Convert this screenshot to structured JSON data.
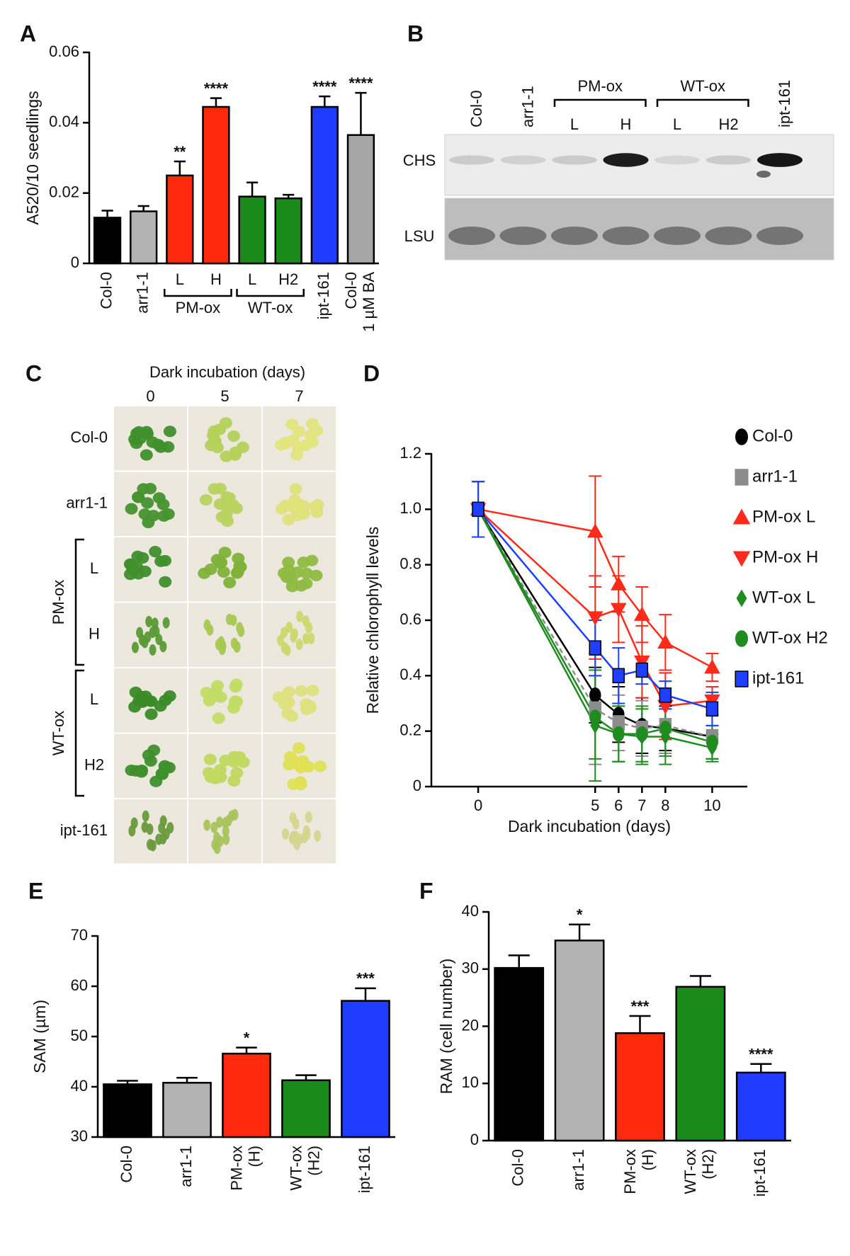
{
  "chart_data": [
    {
      "type": "bar",
      "panel_label": "A",
      "ylabel": "A520/10 seedlings",
      "categories": [
        "Col-0",
        "arr1-1",
        "L",
        "H",
        "L",
        "H2",
        "ipt-161",
        [
          "Col-0",
          "1 µM BA"
        ]
      ],
      "category_groups": [
        null,
        null,
        "PM-ox",
        "PM-ox",
        "WT-ox",
        "WT-ox",
        null,
        null
      ],
      "values": [
        0.013,
        0.0148,
        0.025,
        0.0445,
        0.019,
        0.0185,
        0.0445,
        0.0365
      ],
      "errors": [
        0.002,
        0.0015,
        0.004,
        0.0025,
        0.004,
        0.001,
        0.003,
        0.012
      ],
      "significance": [
        null,
        null,
        "**",
        "****",
        null,
        null,
        "****",
        "****"
      ],
      "colors": [
        "#000000",
        "#b3b3b3",
        "#ff2a0d",
        "#ff2a0d",
        "#1a8a1a",
        "#1a8a1a",
        "#1f3cff",
        "#a6a6a6"
      ],
      "ylim": [
        0,
        0.06
      ],
      "yticks": [
        0,
        0.02,
        0.04,
        0.06
      ]
    },
    {
      "type": "line",
      "panel_label": "D",
      "xlabel": "Dark incubation (days)",
      "ylabel": "Relative chlorophyll levels",
      "x": [
        0,
        5,
        6,
        7,
        8,
        10
      ],
      "xlim": [
        -2,
        11.5
      ],
      "xticks": [
        0,
        5,
        6,
        7,
        8,
        10
      ],
      "ylim": [
        0,
        1.2
      ],
      "yticks": [
        0,
        0.2,
        0.4,
        0.6,
        0.8,
        {
          "value": 1,
          "label": "1.0"
        },
        1.2
      ],
      "legend": "outside-right",
      "series": [
        {
          "name": "Col-0",
          "color": "#000000",
          "marker": "circle",
          "linestyle": "solid",
          "values": [
            1.0,
            0.33,
            0.26,
            0.22,
            0.21,
            0.18
          ],
          "errors": [
            0.1,
            0.1,
            0.1,
            0.1,
            0.08,
            0.08
          ]
        },
        {
          "name": "arr1-1",
          "color": "#8c8c8c",
          "marker": "square",
          "linestyle": "dashed",
          "values": [
            1.0,
            0.28,
            0.23,
            0.21,
            0.22,
            0.18
          ],
          "errors": [
            0.1,
            0.2,
            0.1,
            0.1,
            0.1,
            0.08
          ]
        },
        {
          "name": "PM-ox L",
          "color": "#ff2a1a",
          "marker": "triangle-up",
          "linestyle": "solid",
          "values": [
            1.0,
            0.92,
            0.73,
            0.62,
            0.52,
            0.43
          ],
          "errors": [
            0.1,
            0.2,
            0.1,
            0.1,
            0.1,
            0.05
          ]
        },
        {
          "name": "PM-ox H",
          "color": "#ff2a1a",
          "marker": "triangle-down",
          "linestyle": "solid",
          "values": [
            1.0,
            0.61,
            0.64,
            0.45,
            0.29,
            0.31
          ],
          "errors": [
            0.1,
            0.15,
            0.12,
            0.13,
            0.12,
            0.05
          ]
        },
        {
          "name": "WT-ox L",
          "color": "#1e8c1e",
          "marker": "diamond",
          "linestyle": "solid",
          "values": [
            1.0,
            0.22,
            0.19,
            0.18,
            0.18,
            0.14
          ],
          "errors": [
            0.1,
            0.2,
            0.1,
            0.1,
            0.1,
            0.05
          ]
        },
        {
          "name": "WT-ox H2",
          "color": "#1e8c1e",
          "marker": "circle",
          "linestyle": "solid",
          "values": [
            1.0,
            0.25,
            0.19,
            0.19,
            0.21,
            0.16
          ],
          "errors": [
            0.1,
            0.15,
            0.1,
            0.1,
            0.1,
            0.06
          ]
        },
        {
          "name": "ipt-161",
          "color": "#1f3fff",
          "marker": "square",
          "linestyle": "solid",
          "values": [
            1.0,
            0.5,
            0.4,
            0.42,
            0.33,
            0.28
          ],
          "errors": [
            0.1,
            0.1,
            0.1,
            0.05,
            0.05,
            0.06
          ]
        }
      ]
    },
    {
      "type": "bar",
      "panel_label": "E",
      "ylabel": "SAM (µm)",
      "categories": [
        "Col-0",
        "arr1-1",
        [
          "PM-ox",
          "(H)"
        ],
        [
          "WT-ox",
          "(H2)"
        ],
        "ipt-161"
      ],
      "category_groups": [
        null,
        null,
        null,
        null,
        null
      ],
      "values": [
        40.5,
        40.8,
        46.6,
        41.3,
        57.1
      ],
      "errors": [
        0.7,
        1.0,
        1.2,
        1.0,
        2.5
      ],
      "significance": [
        null,
        null,
        "*",
        null,
        "***"
      ],
      "colors": [
        "#000000",
        "#b3b3b3",
        "#ff2a0d",
        "#1a8a1a",
        "#1f3cff"
      ],
      "ylim": [
        30,
        70
      ],
      "yticks": [
        30,
        40,
        50,
        60,
        70
      ]
    },
    {
      "type": "bar",
      "panel_label": "F",
      "ylabel": "RAM (cell number)",
      "categories": [
        "Col-0",
        "arr1-1",
        [
          "PM-ox",
          "(H)"
        ],
        [
          "WT-ox",
          "(H2)"
        ],
        "ipt-161"
      ],
      "category_groups": [
        null,
        null,
        null,
        null,
        null
      ],
      "values": [
        30.2,
        35.0,
        18.8,
        26.9,
        11.9
      ],
      "errors": [
        2.2,
        2.8,
        3.0,
        1.9,
        1.5
      ],
      "significance": [
        null,
        "*",
        "***",
        null,
        "****"
      ],
      "colors": [
        "#000000",
        "#b3b3b3",
        "#ff2a0d",
        "#1a8a1a",
        "#1f3cff"
      ],
      "ylim": [
        0,
        40
      ],
      "yticks": [
        0,
        10,
        20,
        30,
        40
      ]
    }
  ],
  "blot": {
    "panel_label": "B",
    "columns": [
      "Col-0",
      "arr1-1",
      "L",
      "H",
      "L",
      "H2",
      "ipt-161"
    ],
    "column_groups": [
      null,
      null,
      "PM-ox",
      "PM-ox",
      "WT-ox",
      "WT-ox",
      null
    ],
    "rows": [
      "CHS",
      "LSU"
    ]
  },
  "seedling_photos": {
    "panel_label": "C",
    "title": "Dark incubation (days)",
    "columns": [
      "0",
      "5",
      "7"
    ],
    "rows": [
      "Col-0",
      "arr1-1",
      "L",
      "H",
      "L",
      "H2",
      "ipt-161"
    ],
    "row_groups": [
      null,
      null,
      "PM-ox",
      "PM-ox",
      "WT-ox",
      "WT-ox",
      null
    ]
  }
}
